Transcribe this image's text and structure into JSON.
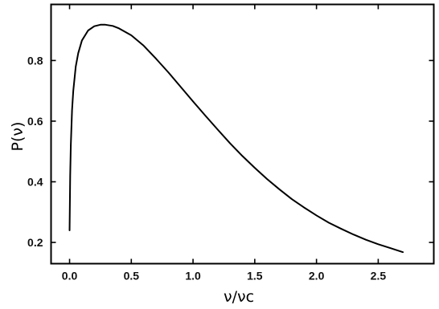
{
  "chart_data": {
    "type": "line",
    "title": "",
    "xlabel": "ν/νc",
    "ylabel": "P(ν)",
    "xlim": [
      -0.15,
      2.95
    ],
    "ylim": [
      0.13,
      0.985
    ],
    "grid": false,
    "legend": "none",
    "xticks": [
      0.0,
      0.5,
      1.0,
      1.5,
      2.0,
      2.5
    ],
    "xtick_labels": [
      "0.0",
      "0.5",
      "1.0",
      "1.5",
      "2.0",
      "2.5"
    ],
    "yticks": [
      0.2,
      0.4,
      0.6,
      0.8
    ],
    "ytick_labels": [
      "0.2",
      "0.4",
      "0.6",
      "0.8"
    ],
    "series": [
      {
        "color": "#000000",
        "x": [
          0.0,
          0.005,
          0.01,
          0.02,
          0.03,
          0.05,
          0.07,
          0.1,
          0.15,
          0.2,
          0.25,
          0.29,
          0.35,
          0.4,
          0.5,
          0.6,
          0.7,
          0.8,
          0.9,
          1.0,
          1.1,
          1.2,
          1.3,
          1.4,
          1.5,
          1.6,
          1.7,
          1.8,
          1.9,
          2.0,
          2.1,
          2.2,
          2.3,
          2.4,
          2.5,
          2.6,
          2.7
        ],
        "y": [
          0.24,
          0.42,
          0.52,
          0.636,
          0.7,
          0.78,
          0.824,
          0.866,
          0.899,
          0.913,
          0.918,
          0.918,
          0.914,
          0.906,
          0.883,
          0.849,
          0.806,
          0.761,
          0.713,
          0.665,
          0.618,
          0.572,
          0.527,
          0.485,
          0.446,
          0.409,
          0.375,
          0.343,
          0.315,
          0.289,
          0.265,
          0.245,
          0.226,
          0.209,
          0.194,
          0.181,
          0.168
        ]
      }
    ]
  }
}
